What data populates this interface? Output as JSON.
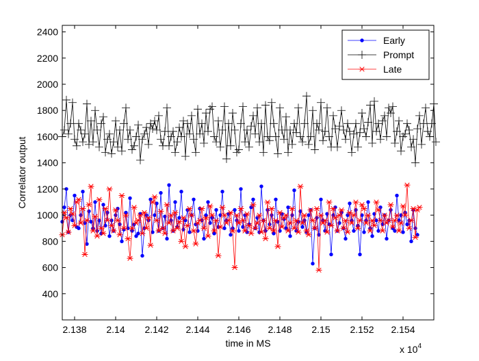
{
  "chart_data": {
    "type": "line",
    "title": "",
    "xlabel": "time in MS",
    "ylabel": "Correlator output",
    "x_multiplier_label": "x 10",
    "x_multiplier_exponent": "4",
    "xlim": [
      21374,
      21555
    ],
    "ylim": [
      200,
      2450
    ],
    "x_ticks": [
      21380,
      21400,
      21420,
      21440,
      21460,
      21480,
      21500,
      21520,
      21540
    ],
    "x_tick_labels": [
      "2.138",
      "2.14",
      "2.142",
      "2.144",
      "2.146",
      "2.148",
      "2.15",
      "2.152",
      "2.154"
    ],
    "y_ticks": [
      400,
      600,
      800,
      1000,
      1200,
      1400,
      1600,
      1800,
      2000,
      2200,
      2400
    ],
    "y_tick_labels": [
      "400",
      "600",
      "800",
      "1000",
      "1200",
      "1400",
      "1600",
      "1800",
      "2000",
      "2200",
      "2400"
    ],
    "grid": false,
    "legend_position": "top-right",
    "x_start": 21374,
    "x_step": 1,
    "series": [
      {
        "name": "Early",
        "color": "#0000ff",
        "marker": "dot",
        "values": [
          950,
          1060,
          1200,
          870,
          1000,
          960,
          1150,
          910,
          900,
          1000,
          1180,
          940,
          780,
          1030,
          950,
          900,
          1100,
          880,
          960,
          860,
          1080,
          920,
          1020,
          840,
          960,
          880,
          1000,
          1050,
          930,
          800,
          890,
          1020,
          900,
          1130,
          880,
          930,
          840,
          860,
          1010,
          690,
          900,
          1000,
          960,
          1120,
          870,
          1000,
          1090,
          880,
          1170,
          900,
          990,
          820,
          1230,
          960,
          880,
          1100,
          910,
          980,
          1180,
          890,
          960,
          1040,
          870,
          1000,
          1120,
          930,
          880,
          1050,
          960,
          820,
          1000,
          1100,
          940,
          980,
          860,
          1040,
          910,
          1000,
          1180,
          900,
          960,
          1010,
          850,
          900,
          1040,
          960,
          880,
          1200,
          910,
          1000,
          870,
          930,
          1060,
          1120,
          900,
          980,
          870,
          1220,
          960,
          880,
          1040,
          930,
          1000,
          860,
          1120,
          950,
          880,
          1010,
          970,
          900,
          1060,
          840,
          1000,
          1190,
          880,
          950,
          1030,
          910,
          960,
          870,
          1000,
          1040,
          630,
          900,
          980,
          850,
          1120,
          960,
          880,
          1010,
          930,
          700,
          1000,
          1060,
          880,
          940,
          1020,
          900,
          820,
          1000,
          1090,
          960,
          880,
          1040,
          920,
          700,
          1000,
          870,
          960,
          1100,
          900,
          840,
          1010,
          960,
          880,
          1060,
          930,
          1000,
          820,
          960,
          1040,
          900,
          880,
          1150,
          960,
          1000,
          870,
          1020,
          930,
          960,
          800,
          1040,
          900,
          850
        ]
      },
      {
        "name": "Prompt",
        "color": "#000000",
        "marker": "plus",
        "values": [
          1600,
          1650,
          1880,
          1620,
          1700,
          1860,
          1580,
          1530,
          1700,
          1650,
          1560,
          1620,
          1850,
          1540,
          1720,
          1560,
          1800,
          1650,
          1520,
          1700,
          1750,
          1480,
          1580,
          1620,
          1470,
          1560,
          1720,
          1520,
          1650,
          1490,
          1700,
          1820,
          1580,
          1650,
          1500,
          1530,
          1600,
          1690,
          1420,
          1580,
          1620,
          1670,
          1540,
          1700,
          1660,
          1720,
          1650,
          1760,
          1580,
          1530,
          1640,
          1820,
          1530,
          1600,
          1640,
          1480,
          1560,
          1670,
          1600,
          1720,
          1450,
          1700,
          1620,
          1760,
          1580,
          1480,
          1810,
          1620,
          1700,
          1550,
          1780,
          1640,
          1810,
          1830,
          1600,
          1560,
          1720,
          1520,
          1650,
          1830,
          1430,
          1700,
          1530,
          1780,
          1650,
          1480,
          1500,
          1700,
          1830,
          1560,
          1650,
          1520,
          1680,
          1760,
          1620,
          1820,
          1560,
          1700,
          1480,
          1840,
          1600,
          1570,
          1860,
          1700,
          1600,
          1470,
          1820,
          1650,
          1580,
          1750,
          1480,
          1650,
          1540,
          1700,
          1630,
          1820,
          1600,
          1560,
          1700,
          1910,
          1540,
          1600,
          1800,
          1500,
          1700,
          1650,
          1860,
          1570,
          1640,
          1820,
          1600,
          1520,
          1760,
          1660,
          1520,
          1680,
          1800,
          1650,
          1580,
          1700,
          1640,
          1480,
          1620,
          1700,
          1520,
          1630,
          1780,
          1660,
          1600,
          1710,
          1840,
          1550,
          1870,
          1640,
          1700,
          1580,
          1720,
          1760,
          1600,
          1820,
          1780,
          1830,
          1550,
          1640,
          1720,
          1490,
          1600,
          1620,
          1700,
          1650,
          1520,
          1580,
          1400,
          1660,
          1760,
          1540,
          1700,
          1820,
          1640,
          1600,
          1700,
          1850,
          1560
        ]
      },
      {
        "name": "Late",
        "color": "#ff0000",
        "marker": "asterisk",
        "values": [
          850,
          1020,
          980,
          870,
          1050,
          1010,
          920,
          1100,
          1120,
          940,
          1050,
          700,
          960,
          1080,
          1220,
          880,
          990,
          840,
          1120,
          900,
          860,
          1050,
          960,
          1200,
          920,
          880,
          1040,
          960,
          850,
          1150,
          900,
          1000,
          820,
          670,
          900,
          1060,
          940,
          960,
          1000,
          860,
          1020,
          900,
          980,
          770,
          1100,
          1140,
          960,
          880,
          1030,
          900,
          860,
          1080,
          940,
          1000,
          880,
          1020,
          900,
          950,
          800,
          980,
          760,
          920,
          1050,
          1000,
          880,
          780,
          940,
          960,
          1050,
          900,
          980,
          840,
          1070,
          1000,
          880,
          960,
          690,
          910,
          1060,
          1000,
          940,
          960,
          1020,
          880,
          600,
          1000,
          940,
          1050,
          960,
          880,
          1010,
          920,
          860,
          1080,
          900,
          940,
          1000,
          870,
          960,
          820,
          1100,
          900,
          1050,
          880,
          960,
          760,
          1020,
          910,
          980,
          1000,
          880,
          940,
          1050,
          900,
          960,
          870,
          1220,
          940,
          1000,
          880,
          850,
          1040,
          960,
          900,
          1050,
          580,
          1000,
          940,
          960,
          870,
          1100,
          920,
          1050,
          980,
          880,
          1000,
          1040,
          900,
          960,
          870,
          1020,
          940,
          1000,
          1100,
          900,
          960,
          1080,
          1050,
          940,
          1000,
          880,
          960,
          920,
          1100,
          1040,
          960,
          880,
          1000,
          940,
          960,
          1080,
          910,
          960,
          1000,
          880,
          940,
          1070,
          1000,
          1230,
          900,
          960,
          1050,
          830,
          1040,
          1060
        ]
      }
    ]
  }
}
